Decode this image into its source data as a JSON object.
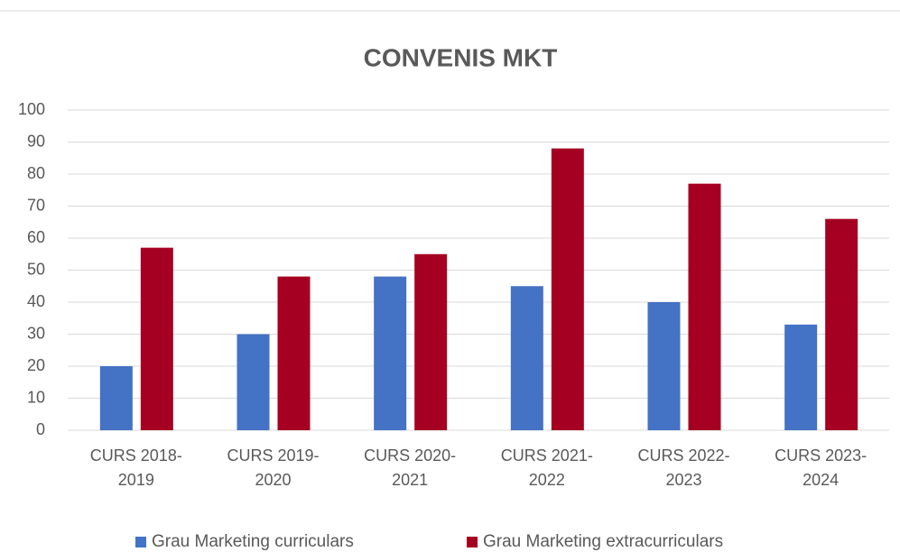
{
  "chart_data": {
    "type": "bar",
    "title": "CONVENIS MKT",
    "categories": [
      "CURS 2018-2019",
      "CURS 2019-2020",
      "CURS 2020-2021",
      "CURS 2021-2022",
      "CURS 2022-2023",
      "CURS 2023-2024"
    ],
    "series": [
      {
        "name": "Grau Marketing curriculars",
        "color": "#4472c4",
        "values": [
          20,
          30,
          48,
          45,
          40,
          33
        ]
      },
      {
        "name": "Grau Marketing extracurriculars",
        "color": "#a50021",
        "values": [
          57,
          48,
          55,
          88,
          77,
          66
        ]
      }
    ],
    "ylim": [
      0,
      100
    ],
    "yticks": [
      0,
      10,
      20,
      30,
      40,
      50,
      60,
      70,
      80,
      90,
      100
    ],
    "grid": true,
    "legend": "bottom"
  }
}
